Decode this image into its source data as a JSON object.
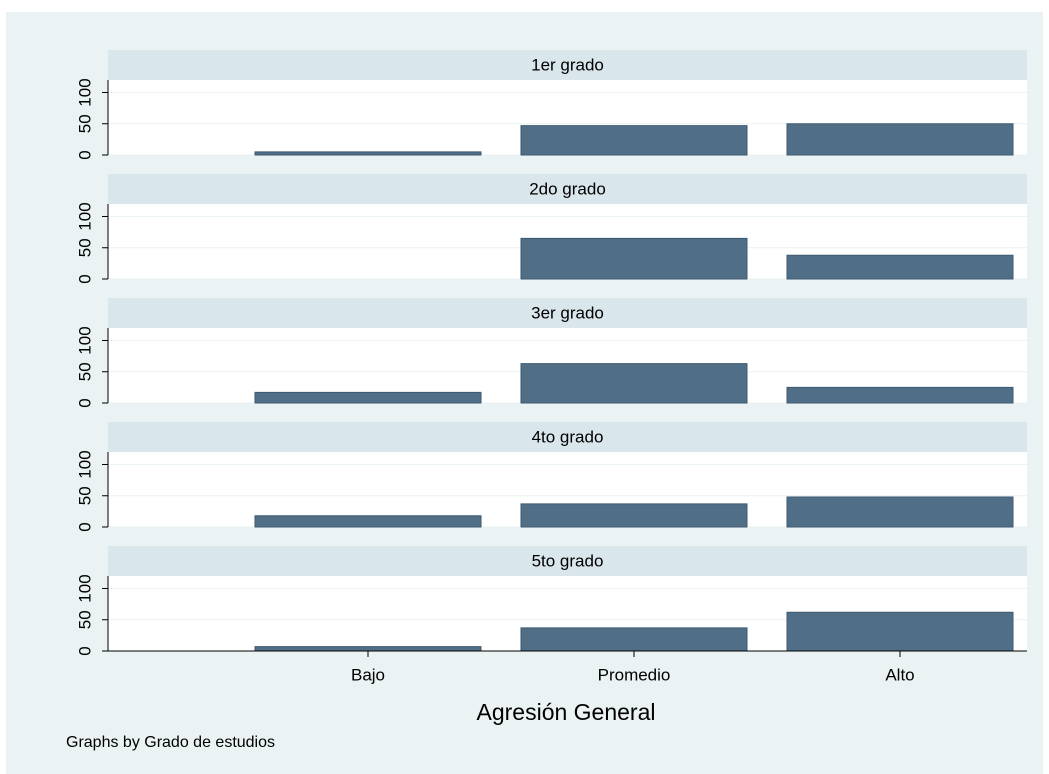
{
  "chart_data": {
    "type": "bar",
    "xlabel": "Agresión General",
    "note": "Graphs by Grado de estudios",
    "categories": [
      "Bajo",
      "Promedio",
      "Alto"
    ],
    "color": "#506f87",
    "ylim": [
      0,
      120
    ],
    "yticks": [
      0,
      50,
      100
    ],
    "grid": true,
    "panels": [
      {
        "title": "1er grado",
        "values": [
          5,
          47,
          50
        ]
      },
      {
        "title": "2do grado",
        "values": [
          0,
          65,
          38
        ]
      },
      {
        "title": "3er grado",
        "values": [
          17,
          63,
          25
        ]
      },
      {
        "title": "4to grado",
        "values": [
          18,
          37,
          48
        ]
      },
      {
        "title": "5to grado",
        "values": [
          7,
          37,
          62
        ]
      }
    ]
  }
}
